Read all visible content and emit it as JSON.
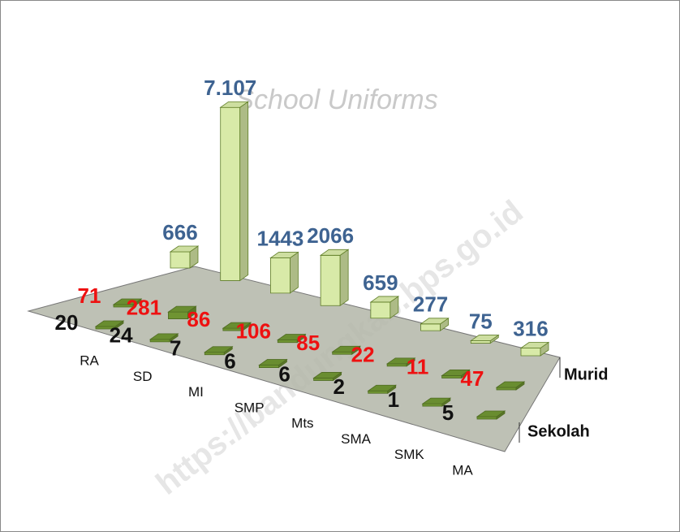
{
  "chart_data": {
    "type": "bar3d",
    "categories": [
      "RA",
      "SD",
      "MI",
      "SMP",
      "Mts",
      "SMA",
      "SMK",
      "MA"
    ],
    "series": [
      {
        "name": "Murid",
        "color": "#d8eaa8",
        "label_color": "#3e6391",
        "values": [
          666,
          7107,
          1443,
          2066,
          659,
          277,
          75,
          316
        ],
        "value_labels": [
          "666",
          "7.107",
          "1443",
          "2066",
          "659",
          "277",
          "75",
          "316"
        ]
      },
      {
        "color": "#6f9432",
        "label_color": "#ee1111",
        "values": [
          71,
          281,
          86,
          106,
          85,
          22,
          11,
          47
        ]
      },
      {
        "name": "Sekolah",
        "color": "#6f9432",
        "label_color": "#111111",
        "values": [
          20,
          24,
          7,
          6,
          6,
          2,
          1,
          5
        ]
      }
    ],
    "background_text": "School Uniforms",
    "watermark": "https://bandungkab.bps.go.id"
  }
}
